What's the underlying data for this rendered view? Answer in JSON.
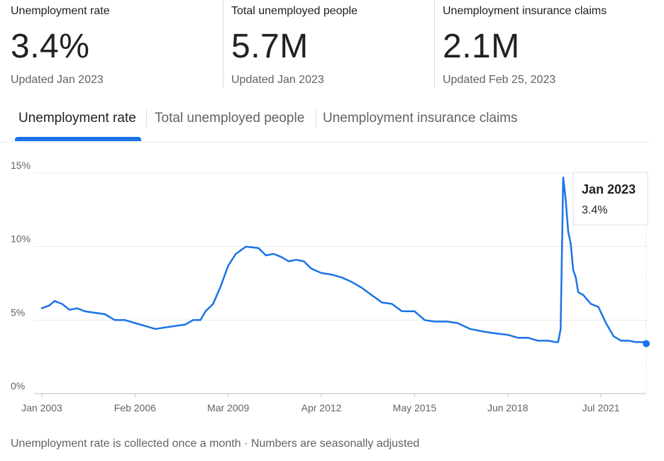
{
  "stats": [
    {
      "label": "Unemployment rate",
      "value": "3.4%",
      "updated": "Updated Jan 2023"
    },
    {
      "label": "Total unemployed people",
      "value": "5.7M",
      "updated": "Updated Jan 2023"
    },
    {
      "label": "Unemployment insurance claims",
      "value": "2.1M",
      "updated": "Updated Feb 25, 2023"
    }
  ],
  "tabs": [
    {
      "label": "Unemployment rate",
      "active": true
    },
    {
      "label": "Total unemployed people",
      "active": false
    },
    {
      "label": "Unemployment insurance claims",
      "active": false
    }
  ],
  "footnote": "Unemployment rate is collected once a month · Numbers are seasonally adjusted",
  "colors": {
    "line": "#1a73e8",
    "grid": "#e8eaed",
    "text": "#202124",
    "muted": "#5f6368"
  },
  "chart_data": {
    "type": "line",
    "title": "",
    "xlabel": "",
    "ylabel": "",
    "grid": true,
    "ylim": [
      0,
      15
    ],
    "y_ticks": [
      {
        "value": 0,
        "label": "0%"
      },
      {
        "value": 5,
        "label": "5%"
      },
      {
        "value": 10,
        "label": "10%"
      },
      {
        "value": 15,
        "label": "15%"
      }
    ],
    "x_ticks": [
      {
        "date": "2003-01",
        "label": "Jan 2003"
      },
      {
        "date": "2006-02",
        "label": "Feb 2006"
      },
      {
        "date": "2009-03",
        "label": "Mar 2009"
      },
      {
        "date": "2012-04",
        "label": "Apr 2012"
      },
      {
        "date": "2015-05",
        "label": "May 2015"
      },
      {
        "date": "2018-06",
        "label": "Jun 2018"
      },
      {
        "date": "2021-07",
        "label": "Jul 2021"
      }
    ],
    "x_range": [
      "2003-01",
      "2023-01"
    ],
    "tooltip": {
      "date": "Jan 2023",
      "value": "3.4%"
    },
    "series": [
      {
        "points": [
          [
            "2003-01",
            5.8
          ],
          [
            "2003-04",
            6.0
          ],
          [
            "2003-06",
            6.3
          ],
          [
            "2003-09",
            6.1
          ],
          [
            "2003-12",
            5.7
          ],
          [
            "2004-03",
            5.8
          ],
          [
            "2004-06",
            5.6
          ],
          [
            "2004-10",
            5.5
          ],
          [
            "2005-02",
            5.4
          ],
          [
            "2005-06",
            5.0
          ],
          [
            "2005-10",
            5.0
          ],
          [
            "2006-02",
            4.8
          ],
          [
            "2006-06",
            4.6
          ],
          [
            "2006-10",
            4.4
          ],
          [
            "2007-02",
            4.5
          ],
          [
            "2007-06",
            4.6
          ],
          [
            "2007-10",
            4.7
          ],
          [
            "2008-01",
            5.0
          ],
          [
            "2008-04",
            5.0
          ],
          [
            "2008-06",
            5.6
          ],
          [
            "2008-09",
            6.1
          ],
          [
            "2008-12",
            7.3
          ],
          [
            "2009-03",
            8.7
          ],
          [
            "2009-06",
            9.5
          ],
          [
            "2009-10",
            10.0
          ],
          [
            "2010-03",
            9.9
          ],
          [
            "2010-06",
            9.4
          ],
          [
            "2010-09",
            9.5
          ],
          [
            "2010-12",
            9.3
          ],
          [
            "2011-03",
            9.0
          ],
          [
            "2011-06",
            9.1
          ],
          [
            "2011-09",
            9.0
          ],
          [
            "2011-12",
            8.5
          ],
          [
            "2012-04",
            8.2
          ],
          [
            "2012-08",
            8.1
          ],
          [
            "2012-12",
            7.9
          ],
          [
            "2013-04",
            7.6
          ],
          [
            "2013-08",
            7.2
          ],
          [
            "2013-12",
            6.7
          ],
          [
            "2014-04",
            6.2
          ],
          [
            "2014-08",
            6.1
          ],
          [
            "2014-12",
            5.6
          ],
          [
            "2015-05",
            5.6
          ],
          [
            "2015-09",
            5.0
          ],
          [
            "2016-01",
            4.9
          ],
          [
            "2016-06",
            4.9
          ],
          [
            "2016-10",
            4.8
          ],
          [
            "2017-03",
            4.4
          ],
          [
            "2017-09",
            4.2
          ],
          [
            "2018-01",
            4.1
          ],
          [
            "2018-06",
            4.0
          ],
          [
            "2018-10",
            3.8
          ],
          [
            "2019-02",
            3.8
          ],
          [
            "2019-06",
            3.6
          ],
          [
            "2019-10",
            3.6
          ],
          [
            "2020-01",
            3.5
          ],
          [
            "2020-02",
            3.5
          ],
          [
            "2020-03",
            4.4
          ],
          [
            "2020-04",
            14.7
          ],
          [
            "2020-05",
            13.2
          ],
          [
            "2020-06",
            11.0
          ],
          [
            "2020-07",
            10.2
          ],
          [
            "2020-08",
            8.4
          ],
          [
            "2020-09",
            7.9
          ],
          [
            "2020-10",
            6.9
          ],
          [
            "2020-12",
            6.7
          ],
          [
            "2021-03",
            6.1
          ],
          [
            "2021-06",
            5.9
          ],
          [
            "2021-09",
            4.8
          ],
          [
            "2021-12",
            3.9
          ],
          [
            "2022-03",
            3.6
          ],
          [
            "2022-06",
            3.6
          ],
          [
            "2022-09",
            3.5
          ],
          [
            "2022-12",
            3.5
          ],
          [
            "2023-01",
            3.4
          ]
        ]
      }
    ]
  }
}
